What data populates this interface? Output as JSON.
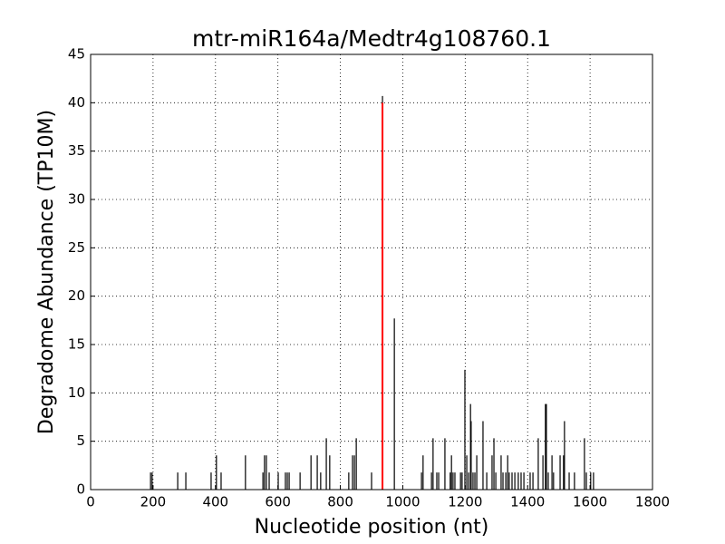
{
  "chart_data": {
    "type": "stem",
    "title": "mtr-miR164a/Medtr4g108760.1",
    "x_label": "Nucleotide position (nt)",
    "y_label": "Degradome Abundance (TP10M)",
    "xlim": [
      0,
      1800
    ],
    "xticks": [
      0,
      200,
      400,
      600,
      800,
      1000,
      1200,
      1400,
      1600,
      1800
    ],
    "ylim": [
      0,
      45
    ],
    "yticks": [
      0,
      5,
      10,
      15,
      20,
      25,
      30,
      35,
      40,
      45
    ],
    "grid": true,
    "series": [
      {
        "color": "#000000",
        "x": [
          192,
          197,
          279,
          305,
          386,
          403,
          418,
          496,
          552,
          557,
          563,
          572,
          601,
          624,
          630,
          636,
          671,
          706,
          726,
          737,
          755,
          766,
          827,
          839,
          845,
          851,
          900,
          935,
          973,
          1060,
          1065,
          1092,
          1097,
          1109,
          1115,
          1135,
          1152,
          1156,
          1161,
          1167,
          1185,
          1190,
          1199,
          1205,
          1211,
          1217,
          1219,
          1225,
          1231,
          1237,
          1257,
          1269,
          1286,
          1292,
          1298,
          1315,
          1321,
          1330,
          1336,
          1341,
          1350,
          1359,
          1370,
          1379,
          1388,
          1408,
          1417,
          1434,
          1449,
          1457,
          1460,
          1466,
          1478,
          1483,
          1504,
          1515,
          1518,
          1533,
          1550,
          1582,
          1588,
          1602,
          1611
        ],
        "values": [
          1.77,
          1.77,
          1.77,
          1.77,
          1.77,
          3.54,
          1.77,
          3.54,
          1.77,
          3.54,
          3.54,
          1.77,
          1.77,
          1.77,
          1.77,
          1.77,
          1.77,
          3.54,
          3.54,
          1.77,
          5.31,
          3.54,
          1.77,
          3.54,
          3.54,
          5.31,
          1.77,
          40.7,
          17.7,
          1.77,
          3.54,
          1.77,
          5.31,
          1.77,
          1.77,
          5.31,
          1.77,
          3.54,
          1.77,
          1.77,
          1.77,
          1.77,
          12.39,
          3.54,
          1.77,
          8.85,
          7.08,
          1.77,
          1.77,
          3.54,
          7.08,
          1.77,
          3.54,
          5.31,
          1.77,
          3.54,
          1.77,
          1.77,
          3.54,
          1.77,
          1.77,
          1.77,
          1.77,
          1.77,
          1.77,
          1.77,
          1.77,
          5.31,
          3.54,
          8.85,
          8.85,
          1.77,
          3.54,
          1.77,
          3.54,
          3.54,
          7.08,
          1.77,
          1.77,
          5.31,
          1.77,
          1.77,
          1.77
        ]
      },
      {
        "color": "#ff0000",
        "x": [
          935
        ],
        "values": [
          40.0
        ]
      }
    ]
  }
}
